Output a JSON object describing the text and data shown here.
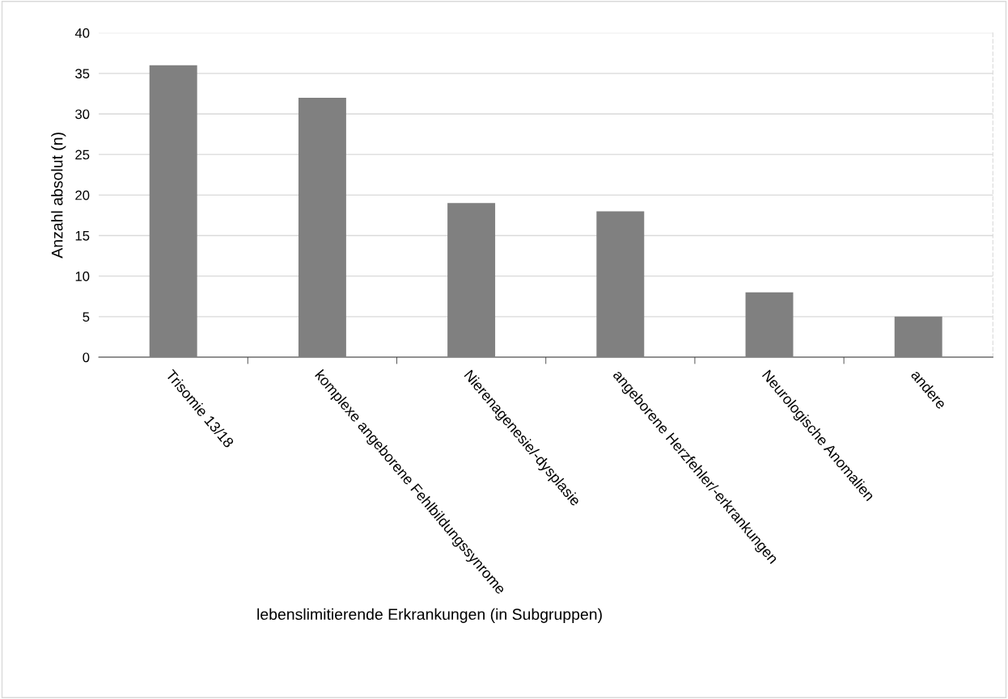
{
  "chart_data": {
    "type": "bar",
    "xlabel": "lebenslimitierende Erkrankungen (in Subgruppen)",
    "ylabel": "Anzahl absolut (n)",
    "categories": [
      "Trisomie 13/18",
      "komplexe angeborene Fehlbildungssynrome",
      "Nierenagenesie/-dysplasie",
      "angeborene Herzfehler/-erkrankungen",
      "Neurologische Anomalien",
      "andere"
    ],
    "values": [
      36,
      32,
      19,
      18,
      8,
      5
    ],
    "color": "#808080",
    "ylim": [
      0,
      40
    ],
    "yticks": [
      0,
      5,
      10,
      15,
      20,
      25,
      30,
      35,
      40
    ],
    "grid": "y"
  }
}
